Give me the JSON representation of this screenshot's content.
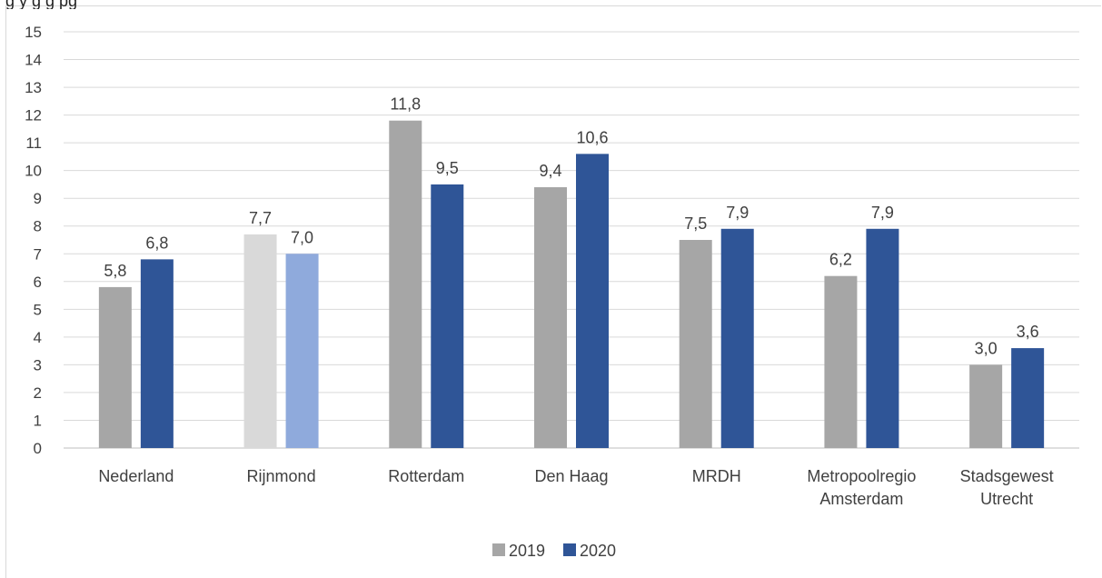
{
  "header": {
    "title_fragment": "g                                                        y    g                                g  pg"
  },
  "chart_data": {
    "type": "bar",
    "categories": [
      [
        "Nederland"
      ],
      [
        "Rijnmond"
      ],
      [
        "Rotterdam"
      ],
      [
        "Den Haag"
      ],
      [
        "MRDH"
      ],
      [
        "Metropoolregio",
        "Amsterdam"
      ],
      [
        "Stadsgewest",
        "Utrecht"
      ]
    ],
    "series": [
      {
        "name": "2019",
        "values": [
          5.8,
          7.7,
          11.8,
          9.4,
          7.5,
          6.2,
          3.0
        ],
        "labels": [
          "5,8",
          "7,7",
          "11,8",
          "9,4",
          "7,5",
          "6,2",
          "3,0"
        ],
        "color": "#a6a6a6",
        "highlight_color": "#d9d9d9"
      },
      {
        "name": "2020",
        "values": [
          6.8,
          7.0,
          9.5,
          10.6,
          7.9,
          7.9,
          3.6
        ],
        "labels": [
          "6,8",
          "7,0",
          "9,5",
          "10,6",
          "7,9",
          "7,9",
          "3,6"
        ],
        "color": "#2f5597",
        "highlight_color": "#8faadc"
      }
    ],
    "highlight_category_index": 1,
    "ylim": [
      0,
      15
    ],
    "yticks": [
      "0",
      "1",
      "2",
      "3",
      "4",
      "5",
      "6",
      "7",
      "8",
      "9",
      "10",
      "11",
      "12",
      "13",
      "14",
      "15"
    ],
    "grid": true,
    "legend_position": "bottom"
  }
}
